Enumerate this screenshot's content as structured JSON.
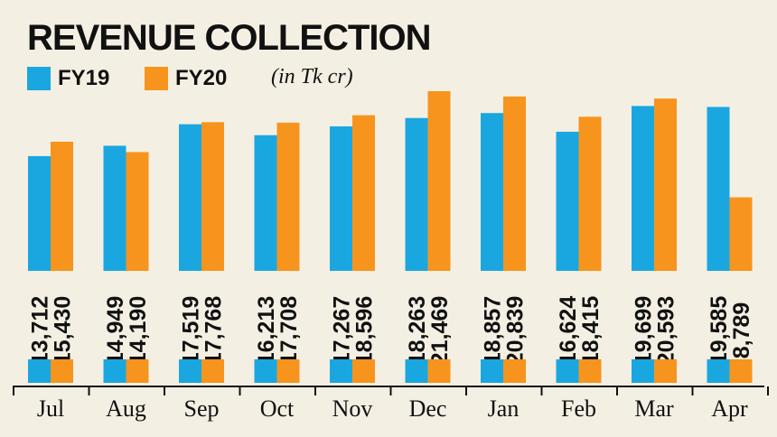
{
  "chart_data": {
    "type": "bar",
    "title": "REVENUE COLLECTION",
    "unit_note": "(in Tk cr)",
    "categories": [
      "Jul",
      "Aug",
      "Sep",
      "Oct",
      "Nov",
      "Dec",
      "Jan",
      "Feb",
      "Mar",
      "Apr"
    ],
    "series": [
      {
        "name": "FY19",
        "color": "#1aa7e0",
        "values": [
          13712,
          14949,
          17519,
          16213,
          17267,
          18263,
          18857,
          16624,
          19699,
          19585
        ],
        "labels": [
          "13,712",
          "14,949",
          "17,519",
          "16,213",
          "17,267",
          "18,263",
          "18,857",
          "16,624",
          "19,699",
          "19,585"
        ]
      },
      {
        "name": "FY20",
        "color": "#f7941d",
        "values": [
          15430,
          14190,
          17768,
          17708,
          18596,
          21469,
          20839,
          18415,
          20593,
          8789
        ],
        "labels": [
          "15,430",
          "14,190",
          "17,768",
          "17,708",
          "18,596",
          "21,469",
          "20,839",
          "18,415",
          "20,593",
          "8,789"
        ]
      }
    ],
    "ylim": [
      0,
      22000
    ],
    "legend_position": "top-left",
    "grid": false
  }
}
